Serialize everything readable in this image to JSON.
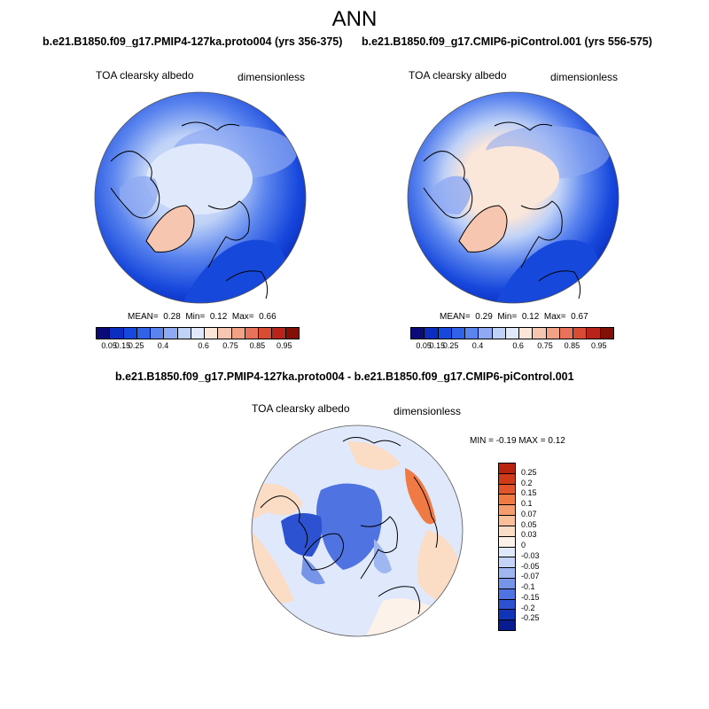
{
  "season": "ANN",
  "panel1": {
    "title": "b.e21.B1850.f09_g17.PMIP4-127ka.proto004 (yrs 356-375)",
    "variable": "TOA clearsky albedo",
    "units": "dimensionless",
    "mean_label": "MEAN=",
    "mean": "0.28",
    "min_label": "Min=",
    "min": "0.12",
    "max_label": "Max=",
    "max": "0.66"
  },
  "panel2": {
    "title": "b.e21.B1850.f09_g17.CMIP6-piControl.001 (yrs 556-575)",
    "variable": "TOA clearsky albedo",
    "units": "dimensionless",
    "mean_label": "MEAN=",
    "mean": "0.29",
    "min_label": "Min=",
    "min": "0.12",
    "max_label": "Max=",
    "max": "0.67"
  },
  "diff": {
    "title": "b.e21.B1850.f09_g17.PMIP4-127ka.proto004 - b.e21.B1850.f09_g17.CMIP6-piControl.001",
    "variable": "TOA clearsky albedo",
    "units": "dimensionless",
    "minmax": "MIN =  -0.19 MAX =   0.12"
  },
  "colorbar_abs": {
    "colors": [
      "#0a0a78",
      "#0b2ec0",
      "#1748dc",
      "#2f62e6",
      "#5a84ee",
      "#8faaf2",
      "#bfd2f7",
      "#dfe9fb",
      "#fbe6da",
      "#f6c6b0",
      "#f1a184",
      "#e8735a",
      "#d84c33",
      "#b8231a",
      "#821006"
    ],
    "labels": [
      "0.05",
      "0.15",
      "0.25",
      "0.4",
      "0.6",
      "0.75",
      "0.85",
      "0.95"
    ]
  },
  "colorbar_diff": {
    "colors": [
      "#b8230f",
      "#cf3a18",
      "#e2552a",
      "#f07a44",
      "#f69d6e",
      "#f8bf98",
      "#fbdcc4",
      "#fdf2ea",
      "#dfe9fb",
      "#c3d4f6",
      "#9fb7f0",
      "#7695e8",
      "#4f73e0",
      "#2c52d2",
      "#1234b8",
      "#081c90"
    ],
    "labels": [
      "0.25",
      "0.2",
      "0.15",
      "0.1",
      "0.07",
      "0.05",
      "0.03",
      "0",
      "-0.03",
      "-0.05",
      "-0.07",
      "-0.1",
      "-0.15",
      "-0.2",
      "-0.25"
    ]
  }
}
